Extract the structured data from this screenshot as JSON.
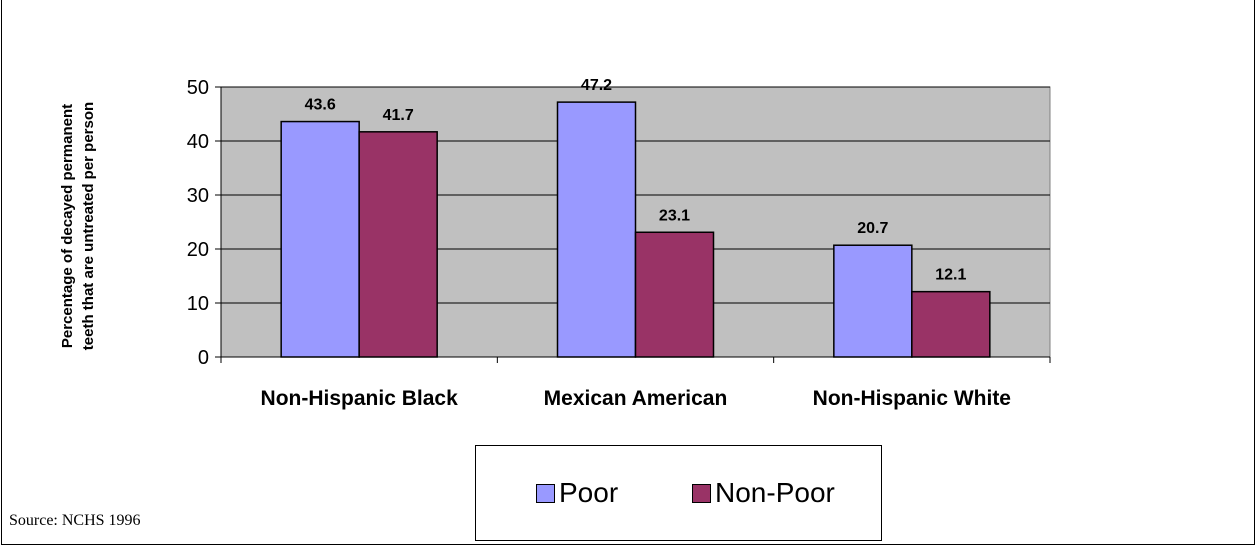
{
  "chart_data": {
    "type": "bar",
    "categories": [
      "Non-Hispanic Black",
      "Mexican American",
      "Non-Hispanic White"
    ],
    "series": [
      {
        "name": "Poor",
        "values": [
          43.6,
          47.2,
          20.7
        ],
        "color": "#9999ff"
      },
      {
        "name": "Non-Poor",
        "values": [
          41.7,
          23.1,
          12.1
        ],
        "color": "#993366"
      }
    ],
    "ylabel_lines": [
      "Percentage of decayed permanent",
      "teeth that are untreated per person"
    ],
    "ylim": [
      0,
      50
    ],
    "yticks": [
      0,
      10,
      20,
      30,
      40,
      50
    ],
    "grid": true,
    "legend_position": "bottom",
    "plot_background": "#c0c0c0"
  },
  "source_text": "Source:  NCHS 1996"
}
